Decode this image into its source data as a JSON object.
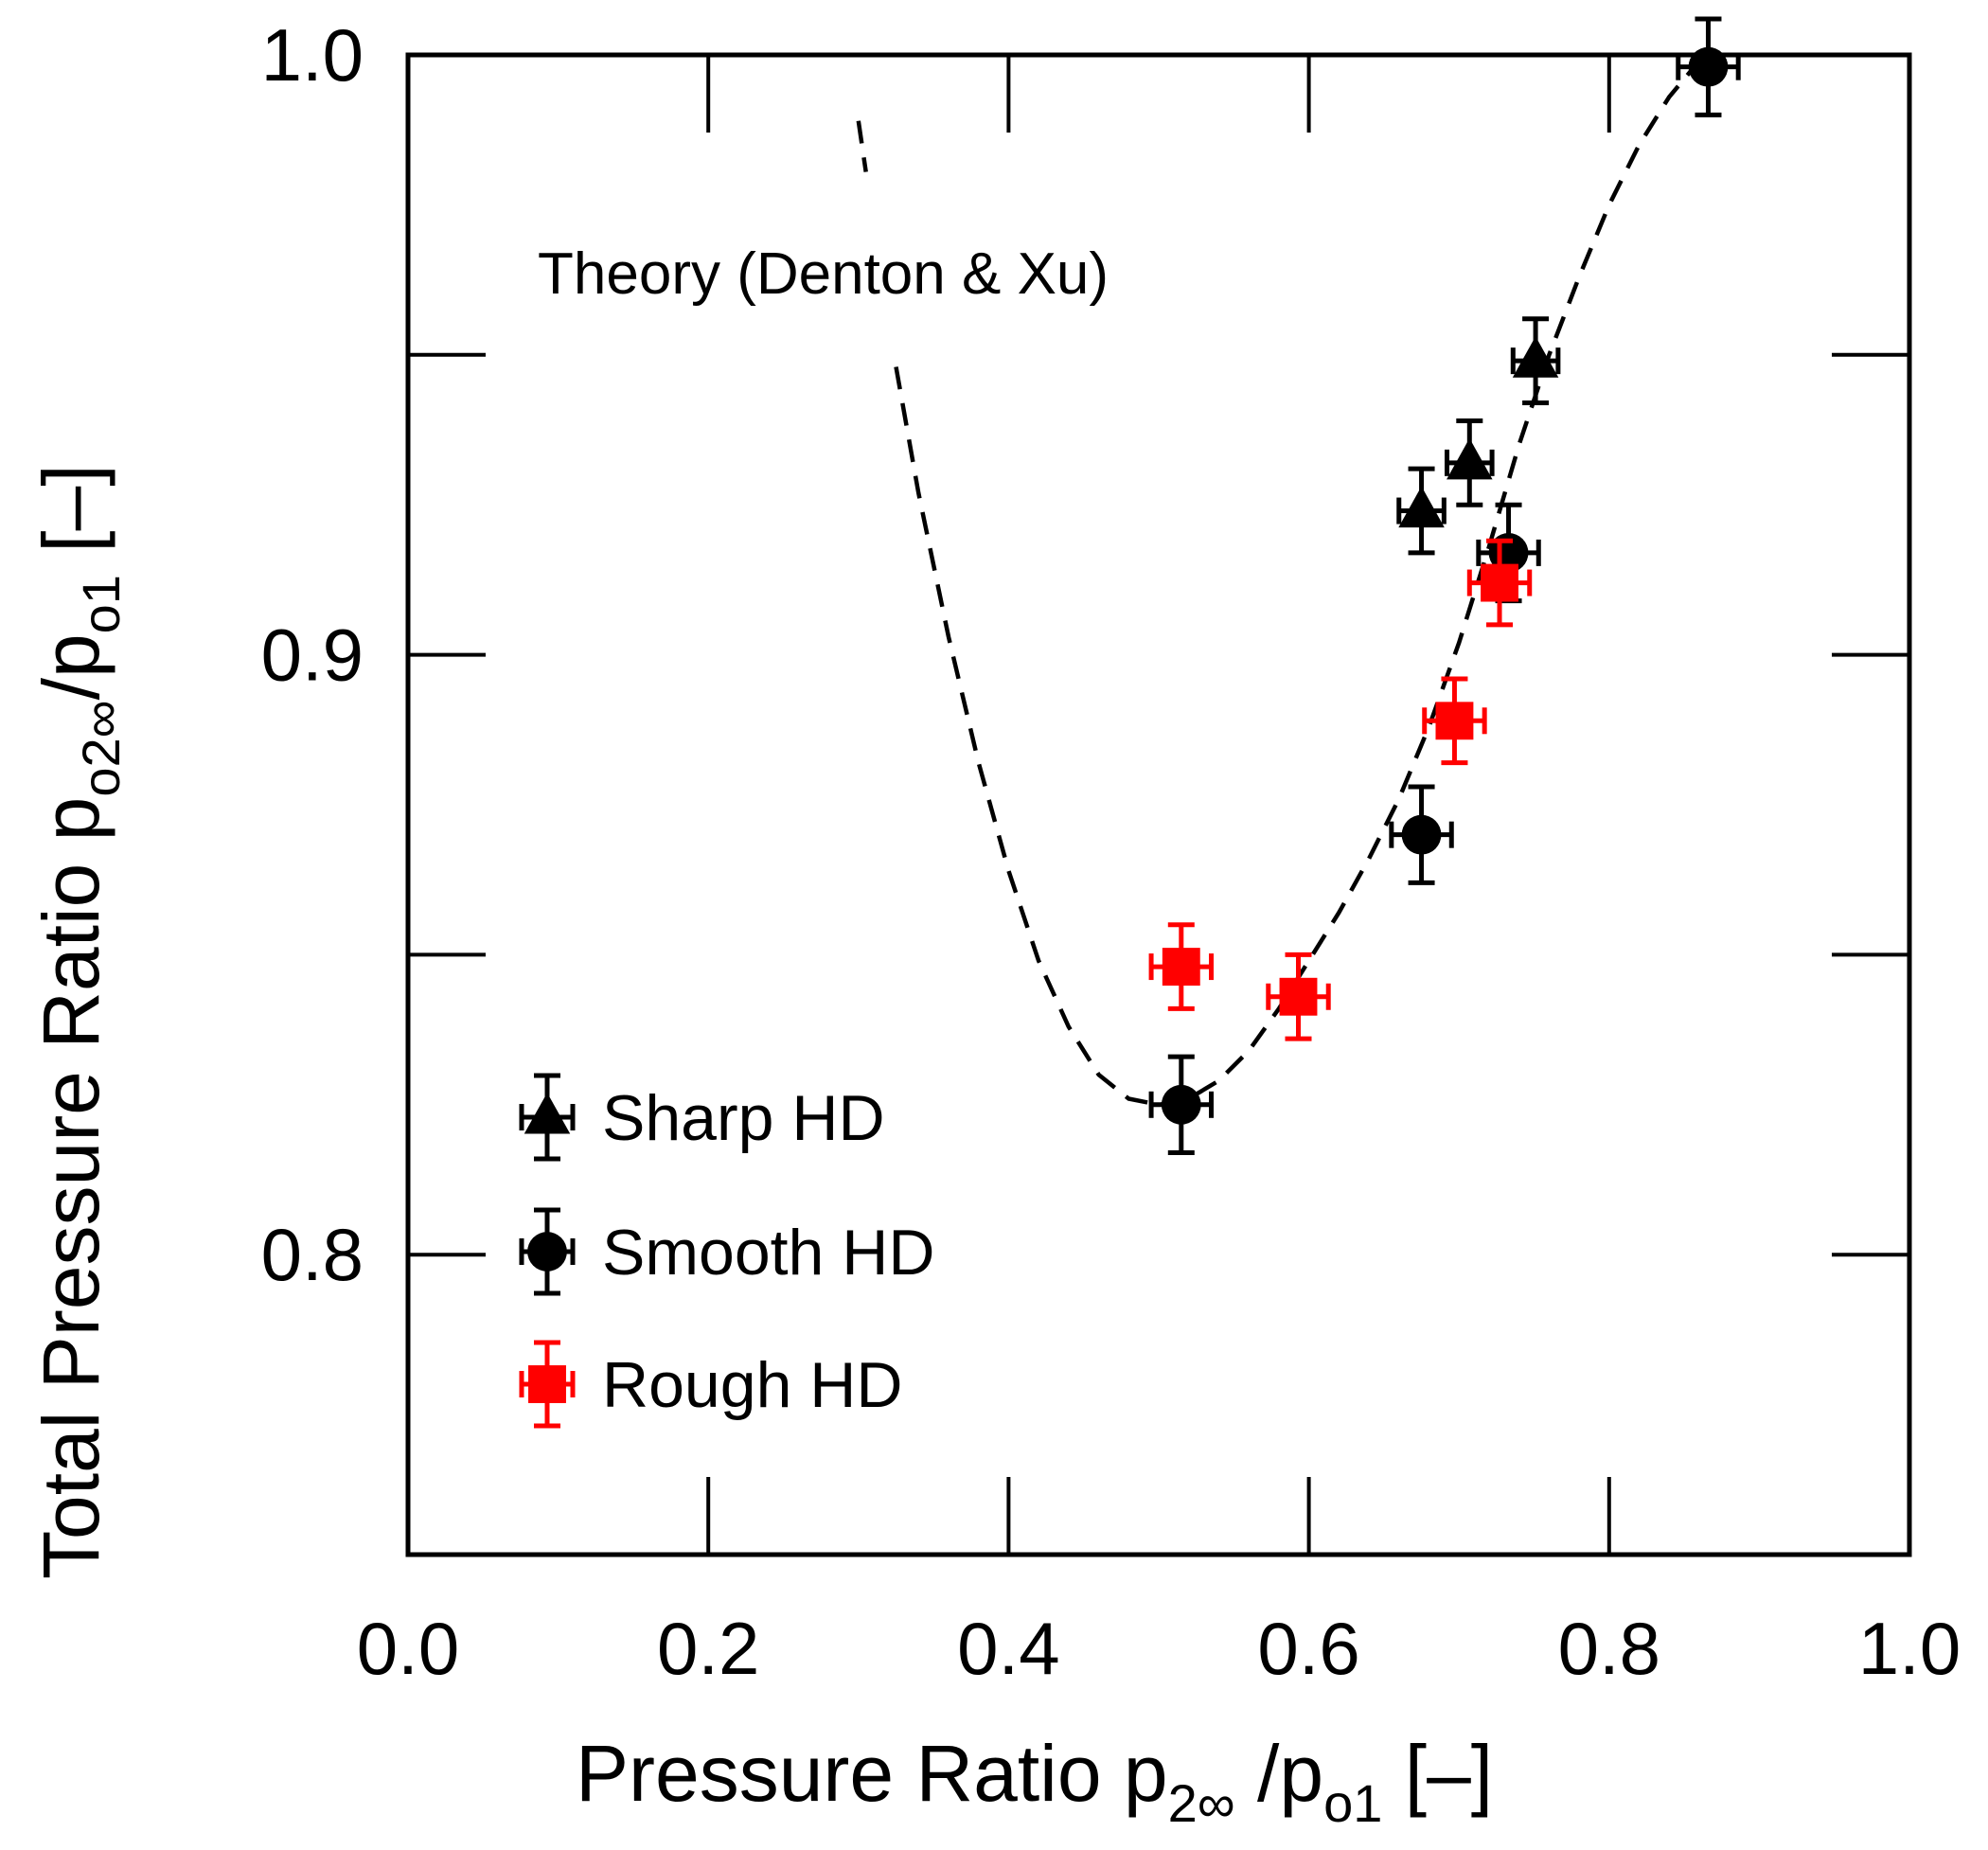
{
  "chart_data": {
    "type": "scatter",
    "title": "",
    "xlabel": "Pressure Ratio p2∞ /po1 [–]",
    "ylabel": "Total Pressure Ratio  po2∞/po1 [–]",
    "xlabel_parts": {
      "main": "Pressure Ratio p",
      "sub1": "2∞",
      "mid": " /p",
      "sub2": "o1",
      "end": " [–]"
    },
    "ylabel_parts": {
      "main": "Total Pressure Ratio  p",
      "sub1": "o2∞",
      "mid": "/p",
      "sub2": "o1",
      "end": " [–]"
    },
    "xlim": [
      0.0,
      1.0
    ],
    "ylim": [
      0.75,
      1.0
    ],
    "xticks": [
      0.0,
      0.2,
      0.4,
      0.6,
      0.8,
      1.0
    ],
    "xtick_labels": [
      "0.0",
      "0.2",
      "0.4",
      "0.6",
      "0.8",
      "1.0"
    ],
    "yticks": [
      0.75,
      0.8,
      0.85,
      0.9,
      0.95,
      1.0
    ],
    "ytick_labels": [
      "",
      "0.8",
      "",
      "0.9",
      "",
      "1.0"
    ],
    "grid": false,
    "legend_position": "bottom-left",
    "theory": {
      "label": "Theory (Denton & Xu)",
      "style": "dashed",
      "x": [
        0.3,
        0.32,
        0.34,
        0.36,
        0.38,
        0.4,
        0.42,
        0.44,
        0.46,
        0.48,
        0.5,
        0.52,
        0.54,
        0.56,
        0.58,
        0.6,
        0.62,
        0.64,
        0.66,
        0.68,
        0.7,
        0.72,
        0.74,
        0.76,
        0.78,
        0.8,
        0.82,
        0.84,
        0.86
      ],
      "y": [
        0.989,
        0.955,
        0.927,
        0.903,
        0.882,
        0.864,
        0.849,
        0.838,
        0.83,
        0.826,
        0.825,
        0.826,
        0.829,
        0.834,
        0.841,
        0.849,
        0.857,
        0.866,
        0.876,
        0.888,
        0.902,
        0.918,
        0.935,
        0.95,
        0.963,
        0.975,
        0.985,
        0.993,
        0.999
      ],
      "gap_x": [
        0.305,
        0.325
      ]
    },
    "series": [
      {
        "name": "Sharp HD",
        "marker": "triangle",
        "color": "#000000",
        "points": [
          {
            "x": 0.675,
            "y": 0.924,
            "xerr": 0.015,
            "yerr": 0.007
          },
          {
            "x": 0.707,
            "y": 0.932,
            "xerr": 0.015,
            "yerr": 0.007
          },
          {
            "x": 0.751,
            "y": 0.949,
            "xerr": 0.015,
            "yerr": 0.007
          }
        ]
      },
      {
        "name": "Smooth HD",
        "marker": "circle",
        "color": "#000000",
        "points": [
          {
            "x": 0.515,
            "y": 0.825,
            "xerr": 0.02,
            "yerr": 0.008
          },
          {
            "x": 0.675,
            "y": 0.87,
            "xerr": 0.02,
            "yerr": 0.008
          },
          {
            "x": 0.733,
            "y": 0.917,
            "xerr": 0.02,
            "yerr": 0.008
          },
          {
            "x": 0.866,
            "y": 0.998,
            "xerr": 0.02,
            "yerr": 0.008
          }
        ]
      },
      {
        "name": "Rough HD",
        "marker": "square",
        "color": "#ff0000",
        "points": [
          {
            "x": 0.515,
            "y": 0.848,
            "xerr": 0.02,
            "yerr": 0.007
          },
          {
            "x": 0.593,
            "y": 0.843,
            "xerr": 0.02,
            "yerr": 0.007
          },
          {
            "x": 0.697,
            "y": 0.889,
            "xerr": 0.02,
            "yerr": 0.007
          },
          {
            "x": 0.727,
            "y": 0.912,
            "xerr": 0.02,
            "yerr": 0.007
          }
        ]
      }
    ]
  }
}
